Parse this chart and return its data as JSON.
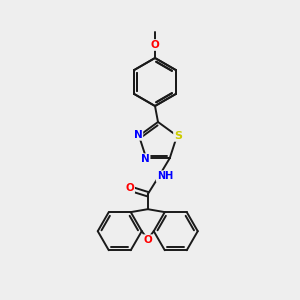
{
  "background_color": "#eeeeee",
  "bond_color": "#1a1a1a",
  "atom_colors": {
    "N": "#0000ff",
    "O": "#ff0000",
    "S": "#cccc00",
    "H": "#008080",
    "C": "#1a1a1a"
  },
  "figsize": [
    3.0,
    3.0
  ],
  "dpi": 100,
  "lw": 1.4,
  "ring_r": 22,
  "penta_r": 18
}
